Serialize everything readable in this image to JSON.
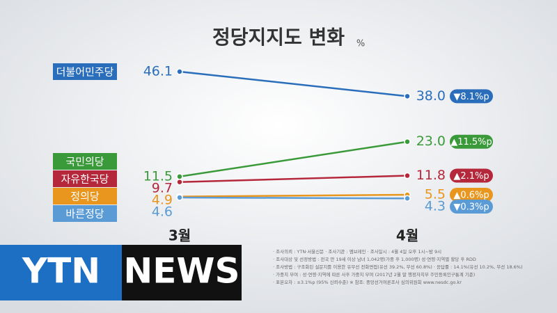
{
  "chart_data": {
    "type": "line",
    "title": "정당지지도 변화",
    "unit": "%",
    "categories": [
      "3월",
      "4월"
    ],
    "ylim": [
      0,
      50
    ],
    "series": [
      {
        "name": "더불어민주당",
        "color": "#2a6ebb",
        "values": [
          46.1,
          38.0
        ],
        "value_labels": [
          "46.1",
          "38.0"
        ],
        "change": "▼8.1%p"
      },
      {
        "name": "국민의당",
        "color": "#3a9a3a",
        "values": [
          11.5,
          23.0
        ],
        "value_labels": [
          "11.5",
          "23.0"
        ],
        "change": "▲11.5%p"
      },
      {
        "name": "자유한국당",
        "color": "#b5273a",
        "values": [
          9.7,
          11.8
        ],
        "value_labels": [
          "9.7",
          "11.8"
        ],
        "change": "▲2.1%p"
      },
      {
        "name": "정의당",
        "color": "#e8961e",
        "values": [
          4.9,
          5.5
        ],
        "value_labels": [
          "4.9",
          "5.5"
        ],
        "change": "▲0.6%p"
      },
      {
        "name": "바른정당",
        "color": "#5b9bd5",
        "values": [
          4.6,
          4.3
        ],
        "value_labels": [
          "4.6",
          "4.3"
        ],
        "change": "▼0.3%p"
      }
    ]
  },
  "footer": {
    "notes": [
      "· 조사의뢰 : YTN·서울신문   · 조사기관 : 엠브레인   · 조사일시 : 4월 4일 오후 1시~밤 9시",
      "· 조사대상 및 선정방법 : 전국 만 19세 이상 남녀 1,042명(가중 후 1,000명) 성·연령·지역별 할당 후 RDD",
      "· 조사방법 : 구조화된 설문지를 이용한 유무선 전화면접(유선 39.2%, 무선 60.8%)   · 응답률 : 14.1%(유선 10.2%, 무선 18.6%)",
      "· 가중치 부여 : 성·연령·지역에 따른 사후 가중치 부여 (2017년 2월 말 행정자치부 주민등록인구통계 기준)",
      "· 표본오차 : ±3.1%p (95% 신뢰수준)   ※ 참조: 중앙선거여론조사 심의위원회 www.nesdc.go.kr"
    ]
  },
  "logo": {
    "left": "YTN",
    "right": "NEWS"
  }
}
